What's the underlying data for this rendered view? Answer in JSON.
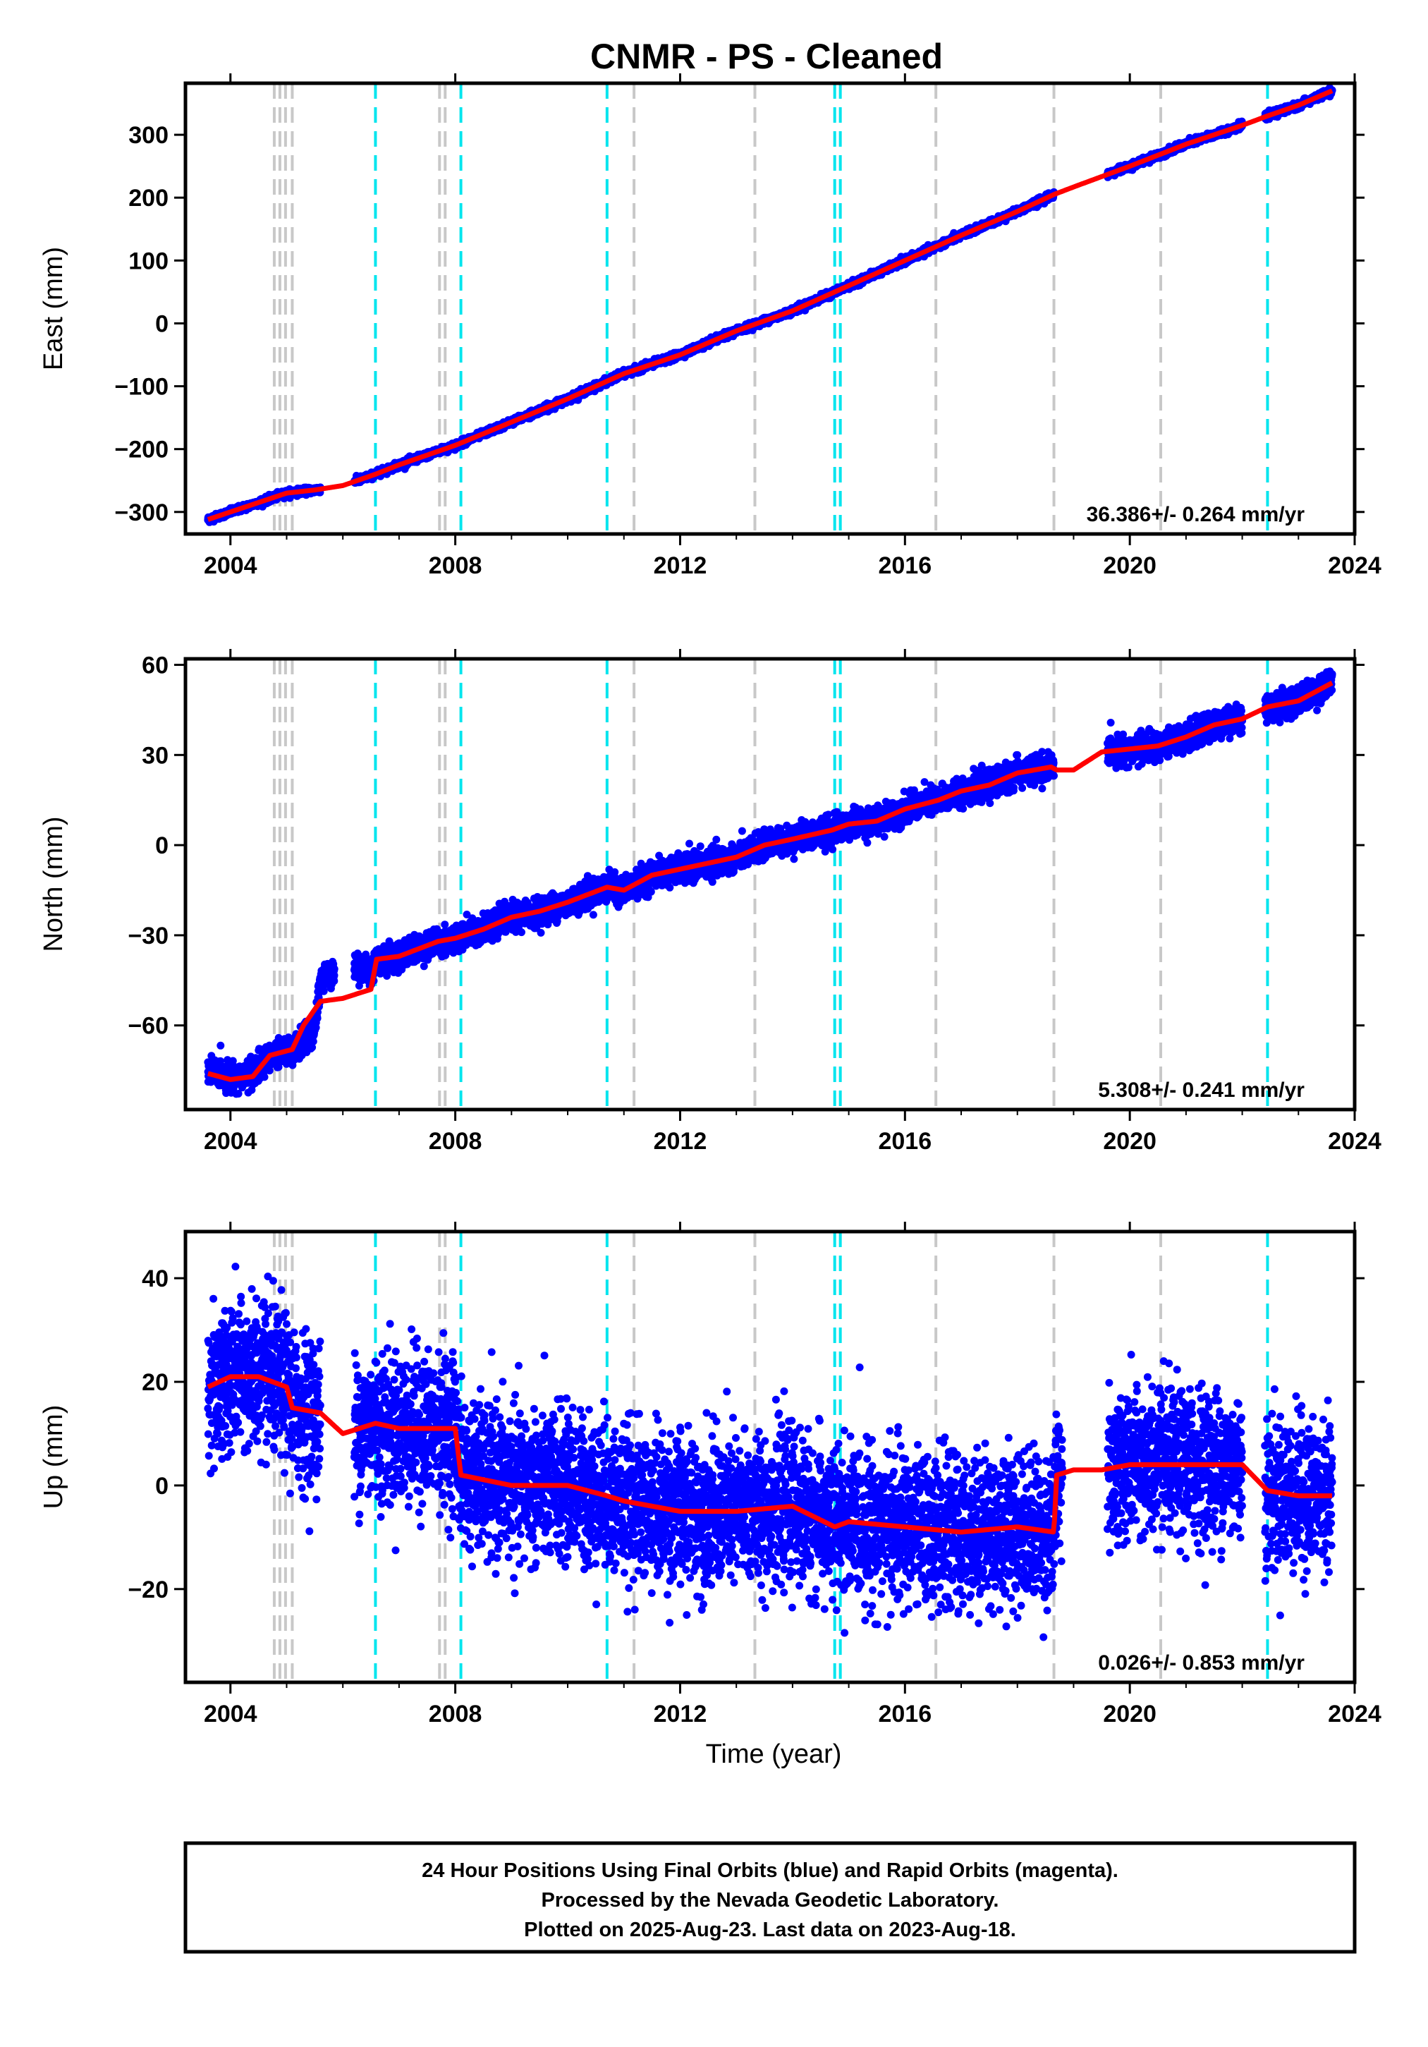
{
  "chart_data": {
    "title": "CNMR  - PS - Cleaned",
    "type": "scatter",
    "x_ticks": [
      "2004",
      "2008",
      "2012",
      "2016",
      "2020",
      "2024"
    ],
    "xlim": [
      2003.2,
      2024.0
    ],
    "xlabel": "Time (year)",
    "grid": false,
    "marker_color": "#0000ff",
    "model_color": "#ff0000",
    "gray_breaks": [
      2004.78,
      2004.88,
      2004.98,
      2005.1,
      2007.72,
      2007.82,
      2011.18,
      2013.33,
      2016.55,
      2018.65,
      2020.55
    ],
    "cyan_breaks": [
      2006.58,
      2008.1,
      2010.7,
      2014.75,
      2014.85,
      2022.45
    ],
    "break_colors": {
      "gray": "#c8c8c8",
      "cyan": "#00e5ee"
    },
    "panels": [
      {
        "ylabel": "East (mm)",
        "ylim": [
          -335,
          382
        ],
        "y_ticks": [
          300,
          200,
          100,
          0,
          -100,
          -200,
          -300
        ],
        "y_tick_labels": [
          "300",
          "200",
          "100",
          "0",
          "−100",
          "−200",
          "−300"
        ],
        "rate_text": "36.386+/- 0.264 mm/yr",
        "series": [
          {
            "values": {
              "x": [
                2003.6,
                2004.0,
                2004.5,
                2005.0,
                2005.5,
                2006.0,
                2006.58,
                2007.0,
                2008.0,
                2009.0,
                2010.0,
                2010.7,
                2011.0,
                2012.0,
                2013.0,
                2014.0,
                2015.0,
                2016.0,
                2017.0,
                2018.0,
                2018.65,
                2019.0,
                2020.0,
                2021.0,
                2022.0,
                2022.45,
                2023.0,
                2023.6
              ],
              "y": [
                -312,
                -300,
                -285,
                -270,
                -265,
                -258,
                -240,
                -225,
                -194,
                -157,
                -120,
                -92,
                -80,
                -50,
                -12,
                20,
                60,
                100,
                140,
                178,
                205,
                217,
                250,
                285,
                315,
                330,
                347,
                370
              ]
            },
            "scatter": 2.5,
            "density": 180
          }
        ],
        "model": {
          "x": [
            2003.6,
            2004.0,
            2004.5,
            2005.0,
            2005.5,
            2006.0,
            2006.58,
            2007.0,
            2008.0,
            2009.0,
            2010.0,
            2010.7,
            2011.0,
            2012.0,
            2013.0,
            2014.0,
            2015.0,
            2016.0,
            2017.0,
            2018.0,
            2018.65,
            2019.0,
            2020.0,
            2021.0,
            2022.0,
            2022.45,
            2023.0,
            2023.6
          ],
          "y": [
            -312,
            -300,
            -285,
            -270,
            -265,
            -258,
            -240,
            -225,
            -194,
            -157,
            -120,
            -92,
            -80,
            -50,
            -12,
            20,
            60,
            100,
            140,
            178,
            205,
            217,
            250,
            285,
            315,
            330,
            347,
            370
          ]
        },
        "gaps": [
          [
            2005.6,
            2006.2
          ],
          [
            2018.65,
            2019.6
          ],
          [
            2022.0,
            2022.4
          ]
        ]
      },
      {
        "ylabel": "North (mm)",
        "ylim": [
          -88,
          62
        ],
        "y_ticks": [
          60,
          30,
          0,
          -30,
          -60
        ],
        "y_tick_labels": [
          "60",
          "30",
          "0",
          "−30",
          "−60"
        ],
        "rate_text": "5.308+/- 0.241 mm/yr",
        "series": [
          {
            "values": {
              "x": [
                2003.6,
                2004.0,
                2004.4,
                2004.7,
                2005.1,
                2005.5,
                2005.6,
                2006.0,
                2006.5,
                2006.6,
                2007.0,
                2007.7,
                2008.0,
                2008.5,
                2009.0,
                2009.5,
                2010.0,
                2010.7,
                2011.0,
                2011.5,
                2012.0,
                2012.5,
                2013.0,
                2013.5,
                2014.0,
                2014.7,
                2015.0,
                2015.5,
                2016.0,
                2016.6,
                2017.0,
                2017.5,
                2018.0,
                2018.6,
                2018.7,
                2019.0,
                2019.5,
                2020.0,
                2020.5,
                2021.0,
                2021.5,
                2022.0,
                2022.45,
                2023.0,
                2023.6
              ],
              "y": [
                -75,
                -77,
                -76,
                -70,
                -68,
                -62,
                -45,
                -40,
                -42,
                -38,
                -37,
                -32,
                -31,
                -28,
                -24,
                -22,
                -19,
                -14,
                -15,
                -10,
                -8,
                -6,
                -4,
                0,
                2,
                5,
                7,
                8,
                12,
                15,
                18,
                20,
                24,
                26,
                25,
                25,
                31,
                32,
                33,
                36,
                40,
                42,
                46,
                48,
                54
              ]
            },
            "scatter": 2.2,
            "density": 180
          }
        ],
        "model": {
          "x": [
            2003.6,
            2004.0,
            2004.4,
            2004.7,
            2005.1,
            2005.3,
            2005.6,
            2006.0,
            2006.5,
            2006.6,
            2007.0,
            2007.7,
            2008.0,
            2008.5,
            2009.0,
            2009.5,
            2010.0,
            2010.7,
            2011.0,
            2011.5,
            2012.0,
            2012.5,
            2013.0,
            2013.5,
            2014.0,
            2014.7,
            2015.0,
            2015.5,
            2016.0,
            2016.6,
            2017.0,
            2017.5,
            2018.0,
            2018.6,
            2018.7,
            2019.0,
            2019.5,
            2020.0,
            2020.5,
            2021.0,
            2021.5,
            2022.0,
            2022.45,
            2023.0,
            2023.6
          ],
          "y": [
            -76,
            -78,
            -77,
            -70,
            -68,
            -60,
            -52,
            -51,
            -48,
            -38,
            -37,
            -32,
            -31,
            -28,
            -24,
            -22,
            -19,
            -14,
            -15,
            -10,
            -8,
            -6,
            -4,
            0,
            2,
            5,
            7,
            8,
            12,
            15,
            18,
            20,
            24,
            26,
            25,
            25,
            31,
            32,
            33,
            36,
            40,
            42,
            46,
            48,
            54
          ]
        },
        "gaps": [
          [
            2005.85,
            2006.2
          ],
          [
            2018.65,
            2019.6
          ],
          [
            2022.0,
            2022.4
          ]
        ],
        "island": {
          "x_range": [
            2005.6,
            2005.85
          ],
          "y_center": -42
        }
      },
      {
        "ylabel": "Up (mm)",
        "ylim": [
          -38,
          49
        ],
        "y_ticks": [
          40,
          20,
          0,
          -20
        ],
        "y_tick_labels": [
          "40",
          "20",
          "0",
          "−20"
        ],
        "rate_text": "0.026+/- 0.853 mm/yr",
        "series": [
          {
            "values": {
              "x": [
                2003.6,
                2004.0,
                2004.5,
                2005.0,
                2005.1,
                2005.6,
                2006.0,
                2006.58,
                2007.0,
                2008.0,
                2008.1,
                2009.0,
                2010.0,
                2010.7,
                2011.0,
                2012.0,
                2013.0,
                2014.0,
                2014.75,
                2015.0,
                2016.0,
                2017.0,
                2018.0,
                2018.65,
                2018.7,
                2019.0,
                2019.5,
                2020.0,
                2021.0,
                2022.0,
                2022.45,
                2023.0,
                2023.6
              ],
              "y": [
                19,
                21,
                21,
                19,
                15,
                14,
                10,
                12,
                11,
                11,
                2,
                0,
                0,
                -2,
                -3,
                -5,
                -5,
                -4,
                -8,
                -7,
                -8,
                -9,
                -8,
                -9,
                2,
                3,
                3,
                4,
                4,
                4,
                -1,
                -2,
                -2
              ]
            },
            "scatter": 7.0,
            "density": 180
          }
        ],
        "model": {
          "x": [
            2003.6,
            2004.0,
            2004.5,
            2005.0,
            2005.1,
            2005.6,
            2006.0,
            2006.58,
            2007.0,
            2008.0,
            2008.1,
            2009.0,
            2010.0,
            2010.7,
            2011.0,
            2012.0,
            2013.0,
            2014.0,
            2014.75,
            2015.0,
            2016.0,
            2017.0,
            2018.0,
            2018.65,
            2018.7,
            2019.0,
            2019.5,
            2020.0,
            2021.0,
            2022.0,
            2022.45,
            2023.0,
            2023.6
          ],
          "y": [
            19,
            21,
            21,
            19,
            15,
            14,
            10,
            12,
            11,
            11,
            2,
            0,
            0,
            -2,
            -3,
            -5,
            -5,
            -4,
            -8,
            -7,
            -8,
            -9,
            -8,
            -9,
            2,
            3,
            3,
            4,
            4,
            4,
            -1,
            -2,
            -2
          ]
        },
        "gaps": [
          [
            2005.6,
            2006.2
          ],
          [
            2018.8,
            2019.6
          ],
          [
            2022.0,
            2022.4
          ]
        ]
      }
    ]
  },
  "footer": {
    "line1": "24 Hour Positions Using Final Orbits (blue) and Rapid Orbits (magenta).",
    "line2": "Processed by the Nevada Geodetic Laboratory.",
    "line3": "Plotted on 2025-Aug-23. Last data on 2023-Aug-18."
  }
}
